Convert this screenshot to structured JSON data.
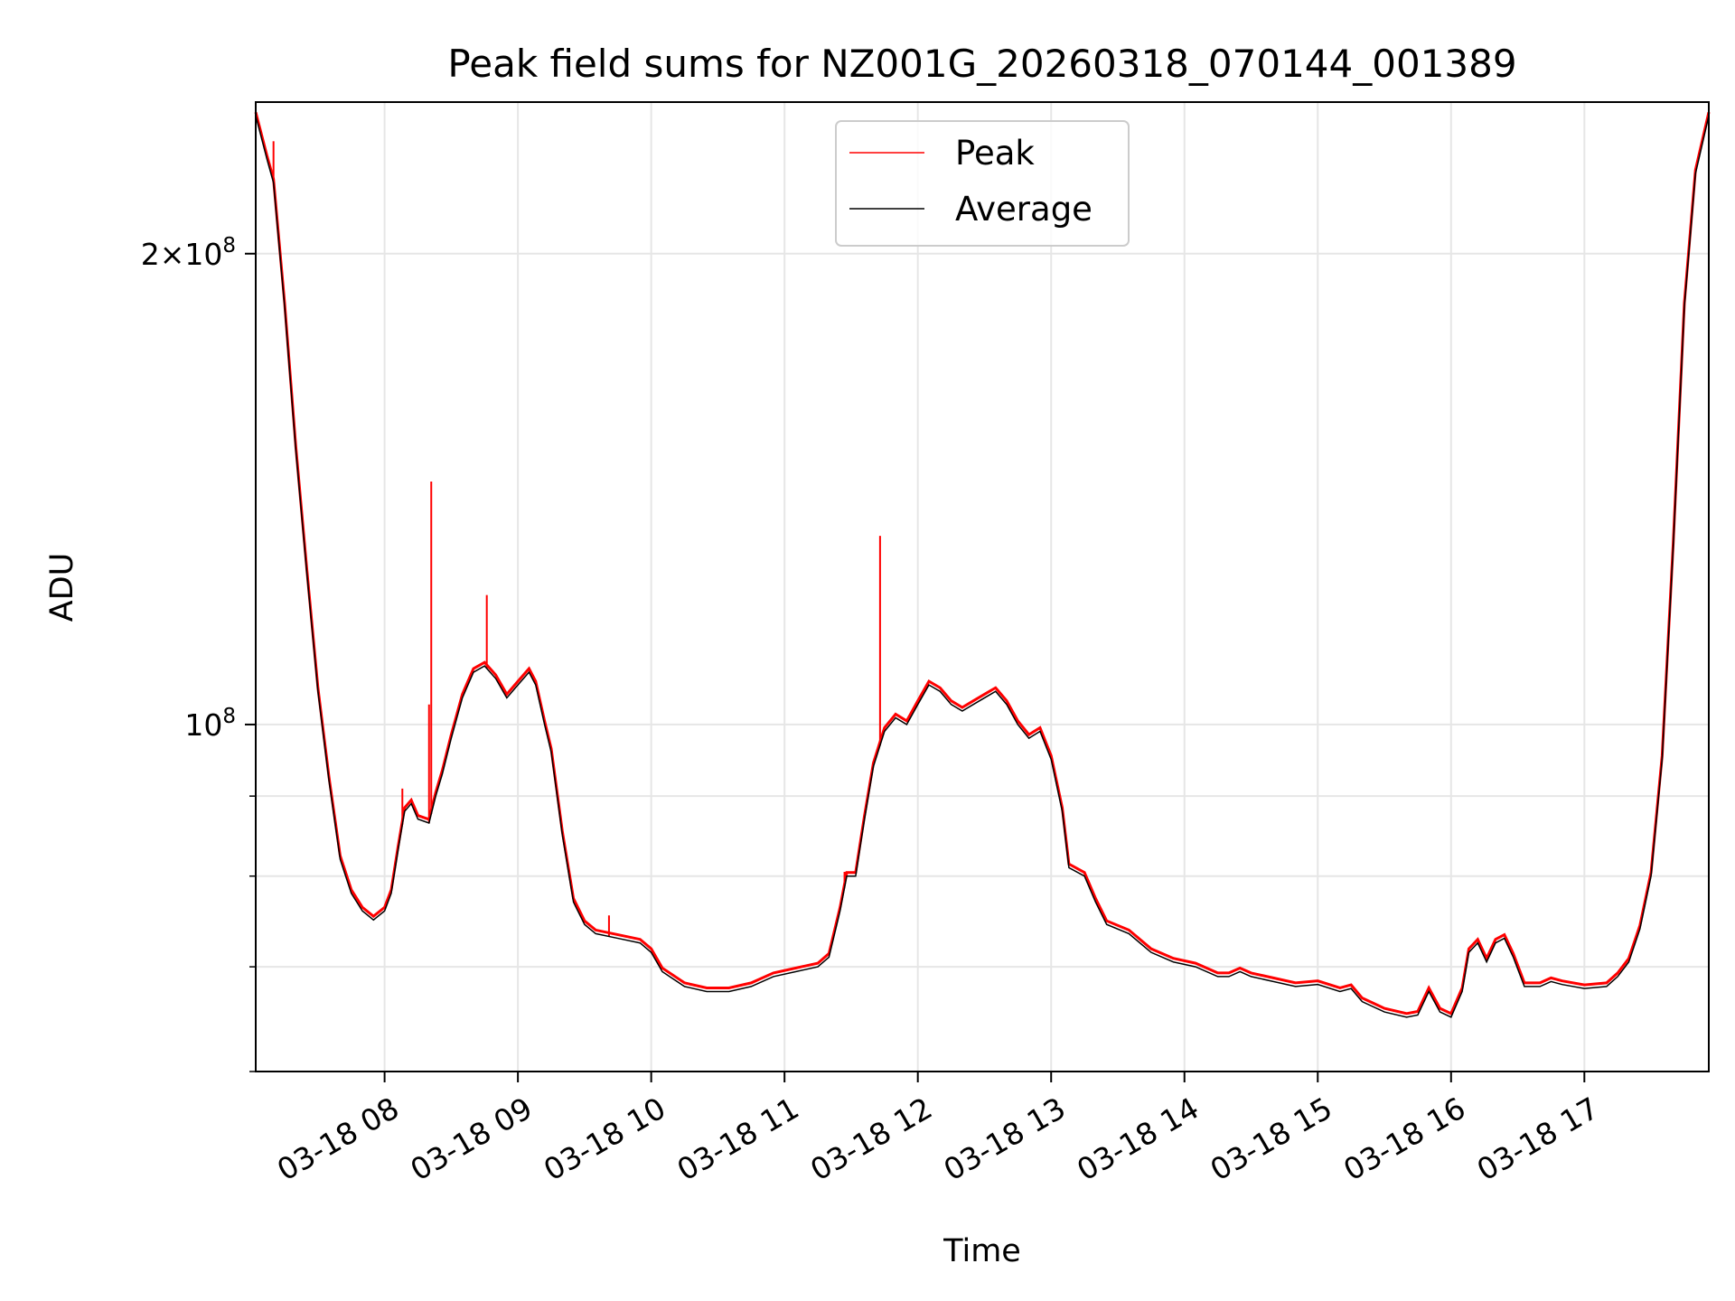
{
  "chart_data": {
    "type": "line",
    "title": "Peak field sums for NZ001G_20260318_070144_001389",
    "xlabel": "Time",
    "ylabel": "ADU",
    "y_scale": "log",
    "ylim": [
      60000000,
      250000000
    ],
    "xlim": [
      "2026-03-18 07:02",
      "2026-03-18 17:56"
    ],
    "x_ticks": [
      "03-18 08",
      "03-18 09",
      "03-18 10",
      "03-18 11",
      "03-18 12",
      "03-18 13",
      "03-18 14",
      "03-18 15",
      "03-18 16",
      "03-18 17"
    ],
    "y_ticks": [
      {
        "value": 100000000,
        "mantissa": "",
        "exponent": "8"
      },
      {
        "value": 200000000,
        "mantissa": "2×",
        "exponent": "8"
      }
    ],
    "y_minor_ticks": [
      60000000,
      70000000,
      80000000,
      90000000
    ],
    "grid": true,
    "legend_position": "top-center",
    "series": [
      {
        "name": "Average",
        "color": "#000000",
        "points": [
          [
            "07:02",
            245000000
          ],
          [
            "07:07",
            230000000
          ],
          [
            "07:10",
            222000000
          ],
          [
            "07:15",
            185000000
          ],
          [
            "07:20",
            150000000
          ],
          [
            "07:25",
            125000000
          ],
          [
            "07:30",
            105000000
          ],
          [
            "07:35",
            92000000
          ],
          [
            "07:40",
            82000000
          ],
          [
            "07:45",
            78000000
          ],
          [
            "07:50",
            76000000
          ],
          [
            "07:55",
            75000000
          ],
          [
            "08:00",
            76000000
          ],
          [
            "08:03",
            78000000
          ],
          [
            "08:06",
            83000000
          ],
          [
            "08:09",
            88000000
          ],
          [
            "08:12",
            89000000
          ],
          [
            "08:15",
            87000000
          ],
          [
            "08:20",
            86500000
          ],
          [
            "08:23",
            90000000
          ],
          [
            "08:26",
            93000000
          ],
          [
            "08:30",
            98000000
          ],
          [
            "08:35",
            104000000
          ],
          [
            "08:40",
            108000000
          ],
          [
            "08:45",
            109000000
          ],
          [
            "08:50",
            107000000
          ],
          [
            "08:55",
            104000000
          ],
          [
            "09:00",
            106000000
          ],
          [
            "09:05",
            108000000
          ],
          [
            "09:08",
            106000000
          ],
          [
            "09:12",
            100000000
          ],
          [
            "09:15",
            96000000
          ],
          [
            "09:20",
            85000000
          ],
          [
            "09:25",
            77000000
          ],
          [
            "09:30",
            74500000
          ],
          [
            "09:35",
            73500000
          ],
          [
            "09:45",
            73000000
          ],
          [
            "09:55",
            72500000
          ],
          [
            "10:00",
            71500000
          ],
          [
            "10:05",
            69500000
          ],
          [
            "10:15",
            68000000
          ],
          [
            "10:25",
            67500000
          ],
          [
            "10:35",
            67500000
          ],
          [
            "10:45",
            68000000
          ],
          [
            "10:55",
            69000000
          ],
          [
            "11:05",
            69500000
          ],
          [
            "11:15",
            70000000
          ],
          [
            "11:20",
            71000000
          ],
          [
            "11:25",
            76000000
          ],
          [
            "11:28",
            80000000
          ],
          [
            "11:32",
            80000000
          ],
          [
            "11:36",
            87000000
          ],
          [
            "11:40",
            94000000
          ],
          [
            "11:45",
            99000000
          ],
          [
            "11:50",
            101000000
          ],
          [
            "11:55",
            100000000
          ],
          [
            "12:00",
            103000000
          ],
          [
            "12:05",
            106000000
          ],
          [
            "12:10",
            105000000
          ],
          [
            "12:15",
            103000000
          ],
          [
            "12:20",
            102000000
          ],
          [
            "12:25",
            103000000
          ],
          [
            "12:30",
            104000000
          ],
          [
            "12:35",
            105000000
          ],
          [
            "12:40",
            103000000
          ],
          [
            "12:45",
            100000000
          ],
          [
            "12:50",
            98000000
          ],
          [
            "12:55",
            99000000
          ],
          [
            "13:00",
            95000000
          ],
          [
            "13:05",
            88000000
          ],
          [
            "13:08",
            81000000
          ],
          [
            "13:15",
            80000000
          ],
          [
            "13:20",
            77000000
          ],
          [
            "13:25",
            74500000
          ],
          [
            "13:35",
            73500000
          ],
          [
            "13:45",
            71500000
          ],
          [
            "13:55",
            70500000
          ],
          [
            "14:05",
            70000000
          ],
          [
            "14:15",
            69000000
          ],
          [
            "14:20",
            69000000
          ],
          [
            "14:25",
            69500000
          ],
          [
            "14:30",
            69000000
          ],
          [
            "14:40",
            68500000
          ],
          [
            "14:50",
            68000000
          ],
          [
            "15:00",
            68200000
          ],
          [
            "15:10",
            67500000
          ],
          [
            "15:15",
            67800000
          ],
          [
            "15:20",
            66500000
          ],
          [
            "15:30",
            65500000
          ],
          [
            "15:40",
            65000000
          ],
          [
            "15:45",
            65200000
          ],
          [
            "15:50",
            67500000
          ],
          [
            "15:55",
            65500000
          ],
          [
            "16:00",
            65000000
          ],
          [
            "16:05",
            67500000
          ],
          [
            "16:08",
            71500000
          ],
          [
            "16:12",
            72500000
          ],
          [
            "16:16",
            70500000
          ],
          [
            "16:20",
            72500000
          ],
          [
            "16:24",
            73000000
          ],
          [
            "16:28",
            71000000
          ],
          [
            "16:33",
            68000000
          ],
          [
            "16:40",
            68000000
          ],
          [
            "16:45",
            68500000
          ],
          [
            "16:50",
            68200000
          ],
          [
            "17:00",
            67800000
          ],
          [
            "17:10",
            68000000
          ],
          [
            "17:15",
            69000000
          ],
          [
            "17:20",
            70500000
          ],
          [
            "17:25",
            74000000
          ],
          [
            "17:30",
            80000000
          ],
          [
            "17:35",
            95000000
          ],
          [
            "17:40",
            130000000
          ],
          [
            "17:45",
            185000000
          ],
          [
            "17:50",
            225000000
          ],
          [
            "17:56",
            245000000
          ]
        ]
      },
      {
        "name": "Peak",
        "color": "#ff0000",
        "spikes": [
          [
            "07:10",
            236000000
          ],
          [
            "08:20",
            103000000
          ],
          [
            "08:21",
            143000000
          ],
          [
            "08:46",
            121000000
          ],
          [
            "11:43",
            132000000
          ],
          [
            "09:41",
            75500000
          ],
          [
            "08:08",
            91000000
          ],
          [
            "11:27",
            80500000
          ]
        ]
      }
    ]
  }
}
